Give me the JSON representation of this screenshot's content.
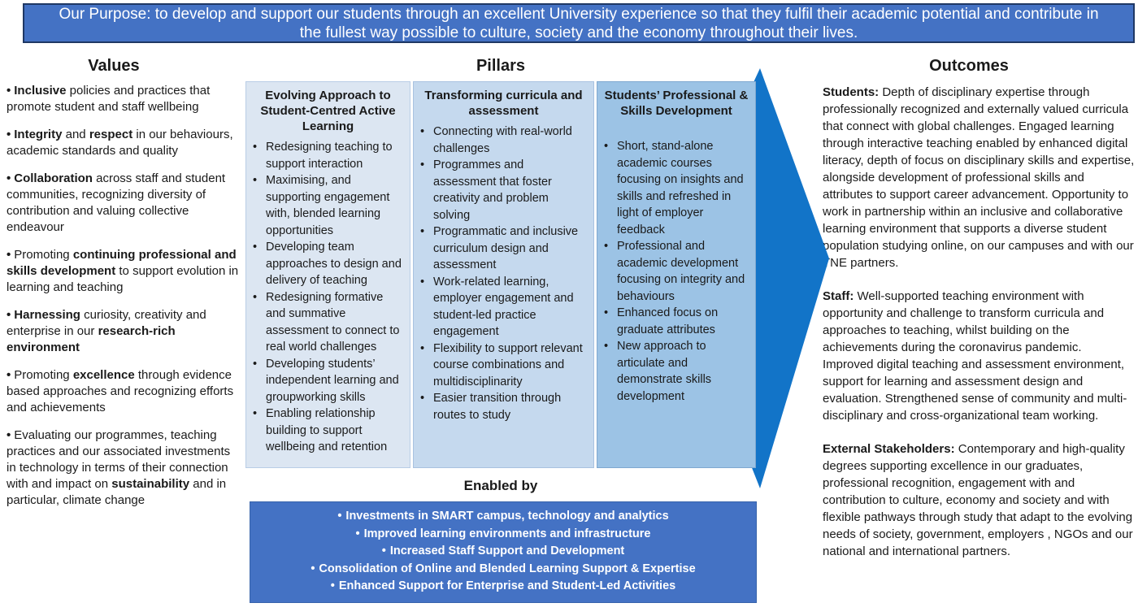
{
  "ui": {
    "bullet": "•"
  },
  "colors": {
    "banner": "#4472c4",
    "banner-border": "#1f3864",
    "pillar1": "#dce6f2",
    "pillar2": "#c5d9ee",
    "pillar3": "#9cc3e5",
    "arrow": "#1274c8",
    "enabled": "#4472c4",
    "enabled-border": "#3763ab",
    "text": "#1a1a1a"
  },
  "purpose_banner": {
    "text": "Our Purpose: to develop and support our students through an excellent University experience so that they fulfil their academic potential and contribute in the fullest way possible to culture, society and the economy throughout their lives."
  },
  "values": {
    "heading": "Values",
    "items": [
      {
        "segments": [
          {
            "t": "Inclusive",
            "b": true
          },
          {
            "t": " policies and practices that promote student and staff wellbeing",
            "b": false
          }
        ]
      },
      {
        "segments": [
          {
            "t": "Integrity",
            "b": true
          },
          {
            "t": " and ",
            "b": false
          },
          {
            "t": "respect",
            "b": true
          },
          {
            "t": " in our behaviours, academic standards and quality",
            "b": false
          }
        ]
      },
      {
        "segments": [
          {
            "t": "Collaboration",
            "b": true
          },
          {
            "t": " across staff and student communities, recognizing diversity of contribution and valuing collective endeavour",
            "b": false
          }
        ]
      },
      {
        "segments": [
          {
            "t": "Promoting ",
            "b": false
          },
          {
            "t": "continuing professional and skills development",
            "b": true
          },
          {
            "t": " to support evolution in learning and teaching",
            "b": false
          }
        ]
      },
      {
        "segments": [
          {
            "t": "Harnessing",
            "b": true
          },
          {
            "t": " curiosity, creativity and enterprise in our ",
            "b": false
          },
          {
            "t": "research-rich environment",
            "b": true
          }
        ]
      },
      {
        "segments": [
          {
            "t": "Promoting ",
            "b": false
          },
          {
            "t": "excellence",
            "b": true
          },
          {
            "t": " through evidence based approaches and recognizing efforts and achievements",
            "b": false
          }
        ]
      },
      {
        "segments": [
          {
            "t": "Evaluating our programmes, teaching practices and our associated investments in technology in terms of their connection with and impact on ",
            "b": false
          },
          {
            "t": "sustainability",
            "b": true
          },
          {
            "t": " and in particular, climate change",
            "b": false
          }
        ]
      }
    ]
  },
  "pillars": {
    "heading": "Pillars",
    "columns": [
      {
        "title": "Evolving Approach to Student-Centred Active Learning",
        "bullets": [
          "Redesigning teaching to support interaction",
          "Maximising, and supporting engagement with, blended learning opportunities",
          "Developing team approaches to design and delivery of teaching",
          "Redesigning formative and summative assessment to connect to real world challenges",
          "Developing students’ independent learning and groupworking skills",
          "Enabling relationship building to support wellbeing and retention"
        ]
      },
      {
        "title": "Transforming curricula and assessment",
        "bullets": [
          "Connecting with real-world challenges",
          "Programmes and assessment that foster creativity and problem solving",
          "Programmatic and inclusive curriculum design and assessment",
          "Work-related learning, employer engagement and student-led practice engagement",
          "Flexibility to support relevant course combinations and multidisciplinarity",
          "Easier transition through routes to study"
        ]
      },
      {
        "title": "Students’ Professional & Skills Development",
        "bullets": [
          "Short, stand-alone academic courses focusing on insights and skills and refreshed in light of employer feedback",
          "Professional and academic development focusing on integrity and behaviours",
          "Enhanced focus on graduate attributes",
          "New approach to articulate and demonstrate skills development"
        ]
      }
    ]
  },
  "enabled_by": {
    "heading": "Enabled by",
    "bullets": [
      "Investments in SMART campus, technology and analytics",
      "Improved learning environments and infrastructure",
      "Increased Staff Support and Development",
      "Consolidation of Online and Blended Learning Support & Expertise",
      "Enhanced Support for Enterprise and Student-Led Activities"
    ]
  },
  "outcomes": {
    "heading": "Outcomes",
    "paragraphs": [
      {
        "segments": [
          {
            "t": "Students:",
            "b": true
          },
          {
            "t": " Depth of disciplinary expertise through professionally recognized and externally valued curricula that connect with global challenges. Engaged learning through interactive teaching enabled by enhanced digital literacy, depth of focus on disciplinary skills and expertise, alongside development of professional skills and attributes to support career advancement. Opportunity to work in partnership within an inclusive and collaborative learning environment that supports a diverse student population studying online, on our campuses and with our TNE partners.",
            "b": false
          }
        ]
      },
      {
        "segments": [
          {
            "t": "Staff:",
            "b": true
          },
          {
            "t": " Well-supported teaching environment with opportunity and challenge to transform curricula and approaches to teaching, whilst building on the achievements during the coronavirus pandemic. Improved digital teaching and assessment environment, support for learning and assessment design and evaluation. Strengthened sense of community and multi-disciplinary and cross-organizational team working.",
            "b": false
          }
        ]
      },
      {
        "segments": [
          {
            "t": "External Stakeholders:",
            "b": true
          },
          {
            "t": " Contemporary and high-quality degrees supporting excellence in our graduates, professional recognition, engagement with and contribution to culture, economy and society and with flexible pathways through study that adapt to the evolving needs of society, government, employers , NGOs and our national and international partners.",
            "b": false
          }
        ]
      }
    ]
  }
}
